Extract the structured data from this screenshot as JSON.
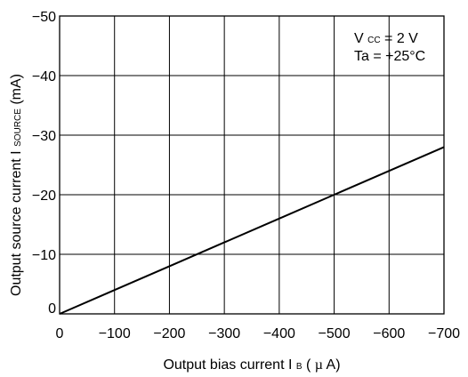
{
  "chart_data": {
    "type": "line",
    "title": "",
    "xlabel": {
      "main": "Output bias current I",
      "sub": "B",
      "unit_open": " (",
      "mu": "µ",
      "unit_close": "A)"
    },
    "ylabel": {
      "main": "Output source current I",
      "sub": "SOURCE",
      "unit": " (mA)"
    },
    "xlim": [
      0,
      -700
    ],
    "ylim": [
      0,
      -50
    ],
    "xticks": [
      0,
      -100,
      -200,
      -300,
      -400,
      -500,
      -600,
      -700
    ],
    "yticks": [
      0,
      -10,
      -20,
      -30,
      -40,
      -50
    ],
    "xtick_labels": [
      "0",
      "−100",
      "−200",
      "−300",
      "−400",
      "−500",
      "−600",
      "−700"
    ],
    "ytick_labels": [
      "0",
      "−10",
      "−20",
      "−30",
      "−40",
      "−50"
    ],
    "grid": true,
    "series": [
      {
        "x": [
          0,
          -100,
          -200,
          -300,
          -400,
          -500,
          -600,
          -700
        ],
        "y": [
          0,
          -4,
          -8,
          -12,
          -16,
          -20,
          -24,
          -28
        ],
        "color": "#000000"
      }
    ],
    "annotations": [
      {
        "main": "V",
        "sub": "CC",
        "rest": " = 2 V"
      },
      {
        "main": "Ta = +25°C",
        "sub": "",
        "rest": ""
      }
    ]
  }
}
